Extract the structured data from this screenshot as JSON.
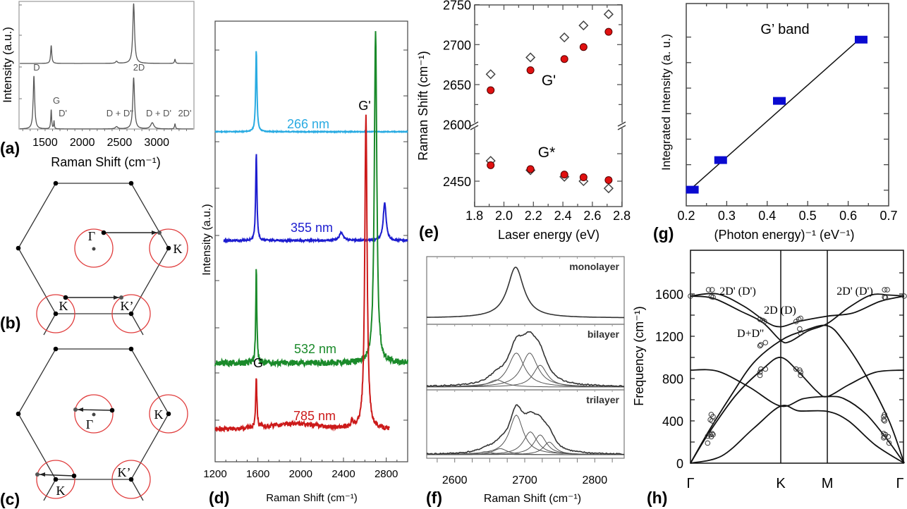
{
  "panel_labels": {
    "a": "(a)",
    "b": "(b)",
    "c": "(c)",
    "d": "(d)",
    "e": "(e)",
    "f": "(f)",
    "g": "(g)",
    "h": "(h)"
  },
  "diagrams": [
    {
      "panel": "(b)",
      "labels": {
        "gamma": "Γ",
        "k_right": "K",
        "k_bottom": "K",
        "k_prime": "K’"
      },
      "circle_color": "#e03c3c"
    },
    {
      "panel": "(c)",
      "labels": {
        "gamma": "Γ",
        "k_right": "K",
        "k_bottom": "K",
        "k_prime": "K’"
      },
      "circle_color": "#e03c3c"
    }
  ],
  "chart_data": [
    {
      "panel": "(a)",
      "type": "line",
      "xlabel": "Raman Shift (cm⁻¹)",
      "ylabel": "Intensity (a.u.)",
      "xlim": [
        1150,
        3500
      ],
      "xticks": [
        "1500",
        "2000",
        "2500",
        "3000"
      ],
      "xtick_values": [
        1500,
        2000,
        2500,
        3000
      ],
      "grid": false,
      "line_color": "#555555",
      "series": [
        {
          "peaks": [
            [
              1582,
              0.3,
              9
            ],
            [
              2460,
              0.035,
              15
            ],
            [
              2690,
              1.0,
              14
            ],
            [
              3245,
              0.07,
              8
            ]
          ]
        },
        {
          "peaks": [
            [
              1350,
              0.94,
              12
            ],
            [
              1582,
              0.34,
              7
            ],
            [
              1620,
              0.14,
              5
            ],
            [
              2460,
              0.04,
              20
            ],
            [
              2690,
              0.91,
              14
            ],
            [
              2940,
              0.11,
              25
            ],
            [
              3245,
              0.09,
              8
            ]
          ]
        }
      ],
      "annotations": [
        "D",
        "G",
        "D'",
        "D + D''",
        "2D",
        "D + D'",
        "2D'"
      ]
    },
    {
      "panel": "(d)",
      "type": "line",
      "xlabel": "Raman Shift (cm⁻¹)",
      "ylabel": "Intensity (a.u.)",
      "xlim": [
        1200,
        3000
      ],
      "xticks": [
        "1200",
        "1600",
        "2000",
        "2400",
        "2800"
      ],
      "xtick_values": [
        1200,
        1600,
        2000,
        2400,
        2800
      ],
      "grid": false,
      "series": [
        {
          "name": "266 nm",
          "color": "#29abe2",
          "baseline": 7.49,
          "range": [
            1200,
            3000
          ],
          "noise": 0.01,
          "peaks": [
            [
              1585,
              1.87,
              7
            ]
          ]
        },
        {
          "name": "355 nm",
          "color": "#1c1ccf",
          "baseline": 5.02,
          "range": [
            1280,
            3000
          ],
          "noise": 0.02,
          "peaks": [
            [
              1585,
              2.02,
              7
            ],
            [
              2380,
              0.18,
              22
            ],
            [
              2785,
              0.86,
              16
            ]
          ]
        },
        {
          "name": "532 nm",
          "color": "#1a8a2a",
          "baseline": 2.24,
          "range": [
            1200,
            3000
          ],
          "noise": 0.07,
          "peaks": [
            [
              1585,
              2.19,
              6
            ],
            [
              2700,
              7.5,
              14
            ]
          ]
        },
        {
          "name": "785 nm",
          "color": "#cc1a1a",
          "baseline": 0.72,
          "range": [
            1200,
            2830
          ],
          "noise": 0.05,
          "peaks": [
            [
              1585,
              1.17,
              7
            ],
            [
              2610,
              7.1,
              13
            ],
            [
              2480,
              0.15,
              10
            ],
            [
              1950,
              0.14,
              320
            ]
          ]
        }
      ],
      "annotations": [
        "G'",
        "G"
      ]
    },
    {
      "panel": "(e)",
      "type": "scatter",
      "xlabel": "Laser energy (eV)",
      "ylabel": "Raman Shift (cm⁻¹)",
      "xlim": [
        1.8,
        2.8
      ],
      "xticks": [
        "1.8",
        "2.0",
        "2.2",
        "2.4",
        "2.6",
        "2.8"
      ],
      "xtick_values": [
        1.8,
        2.0,
        2.2,
        2.4,
        2.6,
        2.8
      ],
      "yticks": [
        "2750",
        "2700",
        "2650",
        "2600",
        "2450"
      ],
      "broken_y_axis": true,
      "x": [
        1.91,
        2.18,
        2.41,
        2.54,
        2.71
      ],
      "series": [
        {
          "band": "G'",
          "marker": "open-diamond",
          "color": "#444444",
          "y": [
            2663,
            2684,
            2709,
            2724,
            2738
          ]
        },
        {
          "band": "G'",
          "marker": "filled-circle",
          "color": "#e01010",
          "y": [
            2643,
            2668,
            2682,
            2697,
            2716
          ]
        },
        {
          "band": "G*",
          "marker": "open-diamond",
          "color": "#444444",
          "y": [
            2487,
            2470,
            2458,
            2450,
            2437
          ]
        },
        {
          "band": "G*",
          "marker": "filled-circle",
          "color": "#e01010",
          "y": [
            2479,
            2472,
            2462,
            2457,
            2452
          ]
        }
      ],
      "annotations": [
        "G'",
        "G*"
      ]
    },
    {
      "panel": "(f)",
      "type": "line",
      "xlabel": "Raman Shift (cm⁻¹)",
      "xlim": [
        2560,
        2842
      ],
      "xticks": [
        "2600",
        "2700",
        "2800"
      ],
      "xtick_values": [
        2600,
        2700,
        2800
      ],
      "subplots": [
        {
          "label": "monolayer",
          "components": [
            [
              2687,
              1.0,
              14
            ]
          ]
        },
        {
          "label": "bilayer",
          "components": [
            [
              2660,
              0.14,
              14
            ],
            [
              2688,
              0.67,
              14
            ],
            [
              2707,
              0.67,
              14
            ],
            [
              2722,
              0.43,
              12
            ]
          ]
        },
        {
          "label": "trilayer",
          "components": [
            [
              2645,
              0.06,
              12
            ],
            [
              2665,
              0.12,
              12
            ],
            [
              2688,
              0.78,
              12
            ],
            [
              2708,
              0.45,
              12
            ],
            [
              2722,
              0.39,
              11
            ],
            [
              2735,
              0.25,
              10
            ]
          ]
        }
      ]
    },
    {
      "panel": "(g)",
      "type": "scatter",
      "xlabel": "(Photon energy)⁻¹ (eV⁻¹)",
      "ylabel": "Integrated Intensity (a. u.)",
      "xlim": [
        0.2,
        0.7
      ],
      "xticks": [
        "0.2",
        "0.3",
        "0.4",
        "0.5",
        "0.6",
        "0.7"
      ],
      "xtick_values": [
        0.2,
        0.3,
        0.4,
        0.5,
        0.6,
        0.7
      ],
      "ylim": [
        0.6,
        8.3
      ],
      "x": [
        0.215,
        0.285,
        0.43,
        0.632
      ],
      "y": [
        1.02,
        2.18,
        4.5,
        6.9
      ],
      "fit_line": [
        [
          0.215,
          1.1
        ],
        [
          0.63,
          6.95
        ]
      ],
      "color": "#0a0ad0",
      "annotation": "G’ band"
    },
    {
      "panel": "(h)",
      "type": "line",
      "ylabel": "Frequency (cm⁻¹)",
      "ylim": [
        0,
        2000
      ],
      "yticks": [
        "0",
        "400",
        "800",
        "1200",
        "1600"
      ],
      "ytick_values": [
        0,
        400,
        800,
        1200,
        1600
      ],
      "xticks": [
        "Γ",
        "K",
        "M",
        "Γ"
      ],
      "high_symmetry_q": [
        0,
        1,
        1.516,
        2.367
      ],
      "branches": [
        [
          [
            0,
            0
          ],
          [
            0.35,
            70
          ],
          [
            0.7,
            330
          ],
          [
            1,
            540
          ],
          [
            1.2,
            495
          ],
          [
            1.516,
            490
          ],
          [
            1.75,
            400
          ],
          [
            2.05,
            170
          ],
          [
            2.367,
            0
          ]
        ],
        [
          [
            0,
            880
          ],
          [
            0.3,
            870
          ],
          [
            0.65,
            720
          ],
          [
            1,
            540
          ],
          [
            1.25,
            610
          ],
          [
            1.516,
            630
          ],
          [
            1.7,
            610
          ],
          [
            1.95,
            460
          ],
          [
            2.2,
            200
          ],
          [
            2.367,
            0
          ]
        ],
        [
          [
            0,
            0
          ],
          [
            0.2,
            280
          ],
          [
            0.5,
            640
          ],
          [
            0.8,
            890
          ],
          [
            1,
            1000
          ],
          [
            1.2,
            860
          ],
          [
            1.4,
            680
          ],
          [
            1.516,
            630
          ],
          [
            1.75,
            740
          ],
          [
            2.05,
            860
          ],
          [
            2.367,
            880
          ]
        ],
        [
          [
            0,
            0
          ],
          [
            0.2,
            300
          ],
          [
            0.45,
            640
          ],
          [
            0.7,
            950
          ],
          [
            1,
            1160
          ],
          [
            1.25,
            1250
          ],
          [
            1.516,
            1300
          ],
          [
            1.7,
            1150
          ],
          [
            1.95,
            820
          ],
          [
            2.2,
            400
          ],
          [
            2.367,
            0
          ]
        ],
        [
          [
            0,
            1580
          ],
          [
            0.3,
            1600
          ],
          [
            0.6,
            1480
          ],
          [
            0.85,
            1330
          ],
          [
            1,
            1290
          ],
          [
            1.2,
            1340
          ],
          [
            1.516,
            1390
          ],
          [
            1.8,
            1420
          ],
          [
            2.1,
            1530
          ],
          [
            2.367,
            1580
          ]
        ],
        [
          [
            0,
            1580
          ],
          [
            0.25,
            1560
          ],
          [
            0.55,
            1440
          ],
          [
            0.8,
            1330
          ],
          [
            1,
            1160
          ],
          [
            1.1,
            1150
          ],
          [
            1.3,
            1250
          ],
          [
            1.516,
            1320
          ],
          [
            1.75,
            1470
          ],
          [
            2.0,
            1590
          ],
          [
            2.2,
            1590
          ],
          [
            2.367,
            1580
          ]
        ]
      ],
      "experimental": [
        [
          0,
          1580
        ],
        [
          2.367,
          1580
        ],
        [
          0.2,
          1640
        ],
        [
          0.24,
          1640
        ],
        [
          0.23,
          1575
        ],
        [
          0.25,
          1570
        ],
        [
          0.23,
          460
        ],
        [
          0.25,
          440
        ],
        [
          0.22,
          410
        ],
        [
          0.24,
          400
        ],
        [
          0.24,
          280
        ],
        [
          0.22,
          270
        ],
        [
          0.25,
          270
        ],
        [
          0.23,
          250
        ],
        [
          0.19,
          255
        ],
        [
          0.19,
          190
        ],
        [
          0.77,
          1360
        ],
        [
          0.8,
          1350
        ],
        [
          0.82,
          1340
        ],
        [
          0.77,
          1110
        ],
        [
          0.78,
          1120
        ],
        [
          0.83,
          1140
        ],
        [
          0.77,
          860
        ],
        [
          0.78,
          890
        ],
        [
          0.77,
          830
        ],
        [
          0.83,
          890
        ],
        [
          1.17,
          1340
        ],
        [
          1.2,
          1360
        ],
        [
          1.22,
          1370
        ],
        [
          1.21,
          1270
        ],
        [
          1.22,
          1230
        ],
        [
          1.17,
          890
        ],
        [
          1.21,
          880
        ],
        [
          1.22,
          860
        ],
        [
          1.22,
          830
        ],
        [
          2.15,
          1640
        ],
        [
          2.18,
          1640
        ],
        [
          2.15,
          1570
        ],
        [
          2.16,
          1565
        ],
        [
          2.15,
          460
        ],
        [
          2.14,
          440
        ],
        [
          2.14,
          410
        ],
        [
          2.15,
          400
        ],
        [
          2.14,
          280
        ],
        [
          2.16,
          270
        ],
        [
          2.15,
          250
        ],
        [
          2.14,
          240
        ],
        [
          2.19,
          250
        ],
        [
          2.2,
          190
        ]
      ],
      "annotations": [
        "2D' (D')",
        "2D (D)",
        "D+D''",
        "2D' (D')"
      ]
    }
  ]
}
